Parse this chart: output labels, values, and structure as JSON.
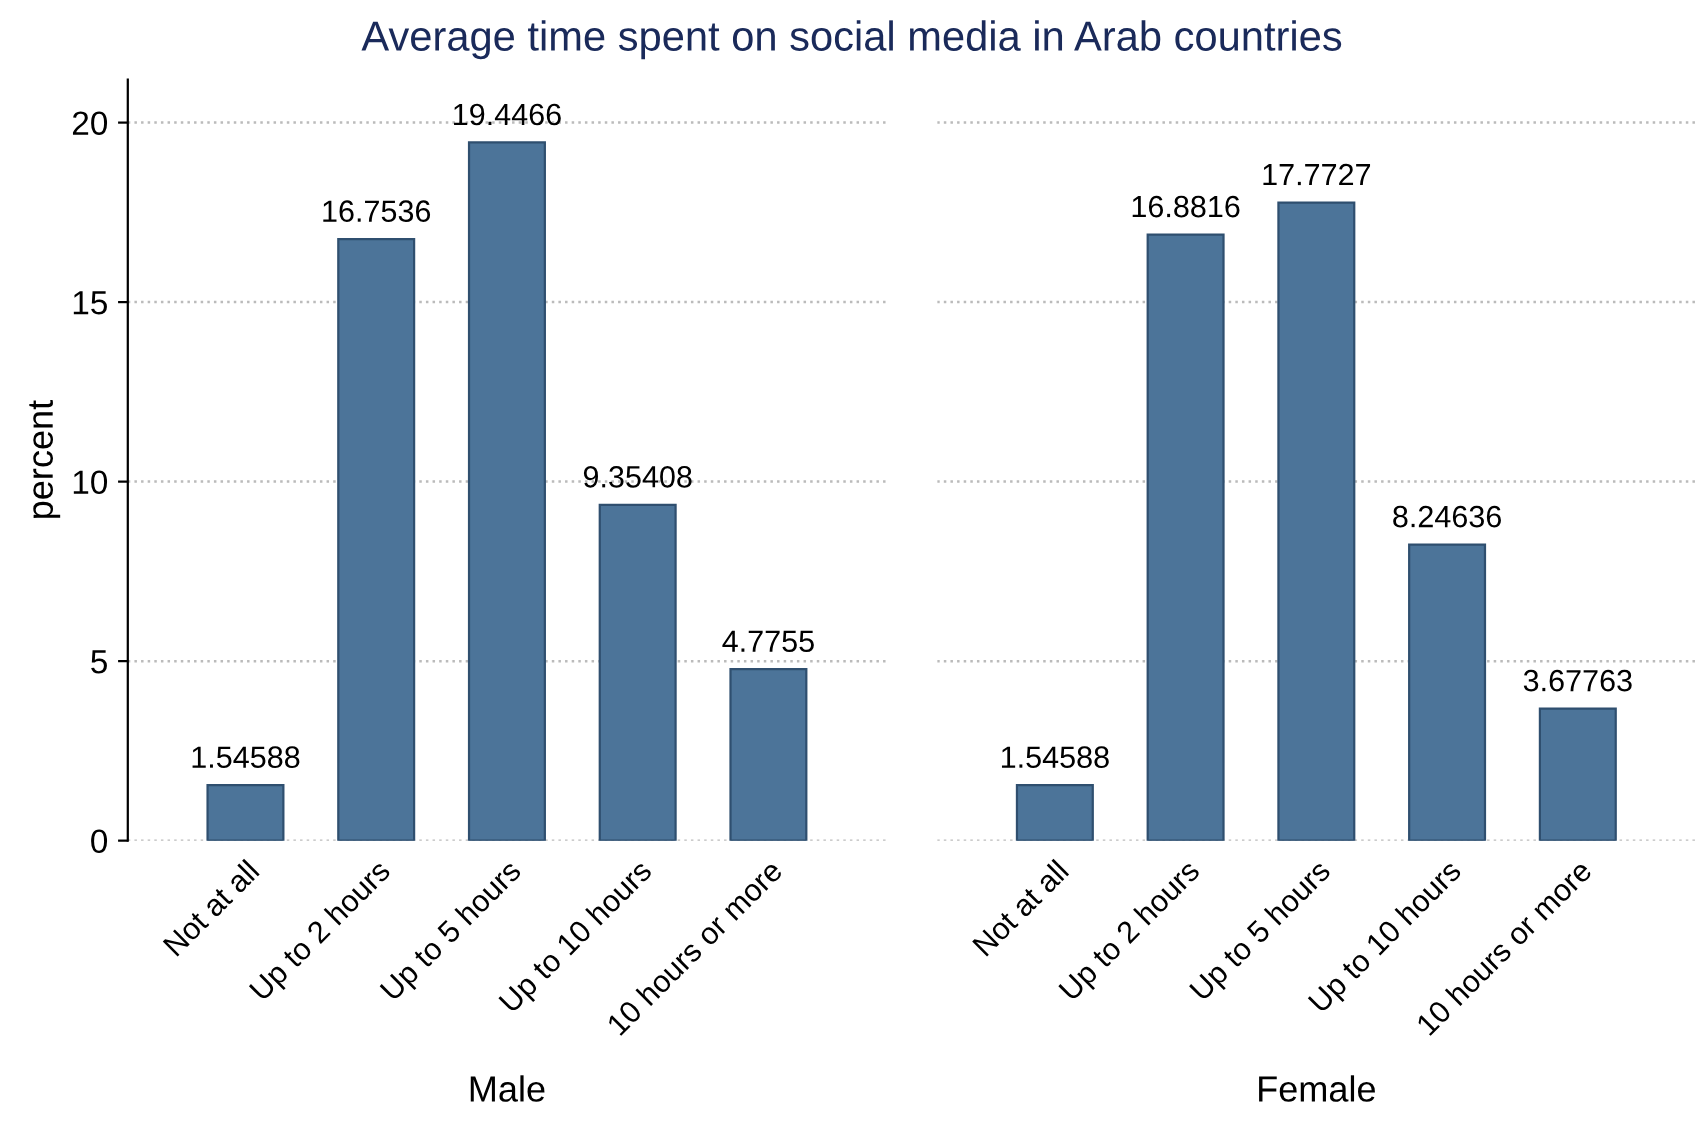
{
  "chart_data": [
    {
      "type": "bar",
      "title": "Average time spent on social media in Arab countries",
      "ylabel": "percent",
      "xlabel": "Male",
      "categories": [
        "Not at all",
        "Up to 2 hours",
        "Up to 5 hours",
        "Up to 10 hours",
        "10 hours or more"
      ],
      "values": [
        1.54588,
        16.7536,
        19.4466,
        9.35408,
        4.7755
      ],
      "color": "#4c7499",
      "ylim": [
        0,
        21.2
      ],
      "yticks": [
        0,
        5,
        10,
        15,
        20
      ],
      "grid": "y",
      "data_labels": true
    },
    {
      "type": "bar",
      "xlabel": "Female",
      "categories": [
        "Not at all",
        "Up to 2 hours",
        "Up to 5 hours",
        "Up to 10 hours",
        "10 hours or more"
      ],
      "values": [
        1.54588,
        16.8816,
        17.7727,
        8.24636,
        3.67763
      ],
      "color": "#4c7499",
      "grid": "y",
      "data_labels": true,
      "tick_labels": "x"
    }
  ]
}
